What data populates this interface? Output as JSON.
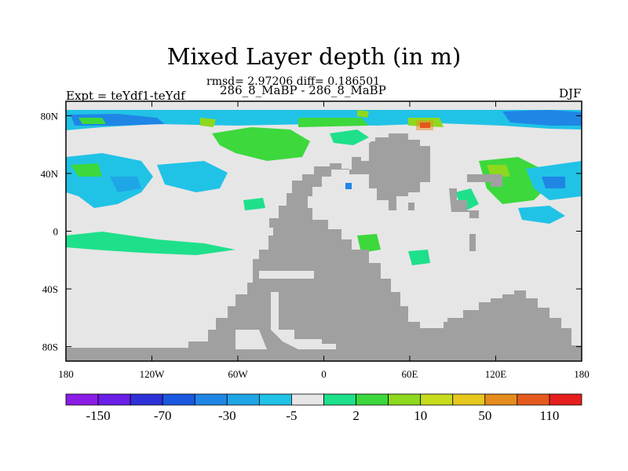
{
  "title": "Mixed Layer depth (in m)",
  "stats_line": "rmsd= 2.97206 diff= 0.186501",
  "cases_line": "286_8_MaBP - 286_8_MaBP",
  "experiment_label": "Expt = teYdf1-teYdf",
  "season_label": "DJF",
  "map": {
    "lon_range": [
      -180,
      180
    ],
    "lat_range": [
      -90,
      90
    ],
    "x_ticks": [
      "180",
      "120W",
      "60W",
      "0",
      "60E",
      "120E",
      "180"
    ],
    "y_ticks": [
      "80N",
      "40N",
      "0",
      "40S",
      "80S"
    ],
    "land_color": "#a0a0a0",
    "neutral_color": "#e6e6e6"
  },
  "colorbar": {
    "colors": [
      "#8c1de6",
      "#6a1fe6",
      "#2e31d8",
      "#1a58e0",
      "#1f86e6",
      "#1fa6e6",
      "#20c3e6",
      "#e6e6e6",
      "#1ee08a",
      "#3cd83c",
      "#8ed81e",
      "#c8dc1e",
      "#e6c81e",
      "#e68c1e",
      "#e65a1e",
      "#e61e1e"
    ],
    "labels": [
      "-150",
      "-70",
      "-30",
      "-5",
      "2",
      "10",
      "50",
      "110"
    ]
  }
}
